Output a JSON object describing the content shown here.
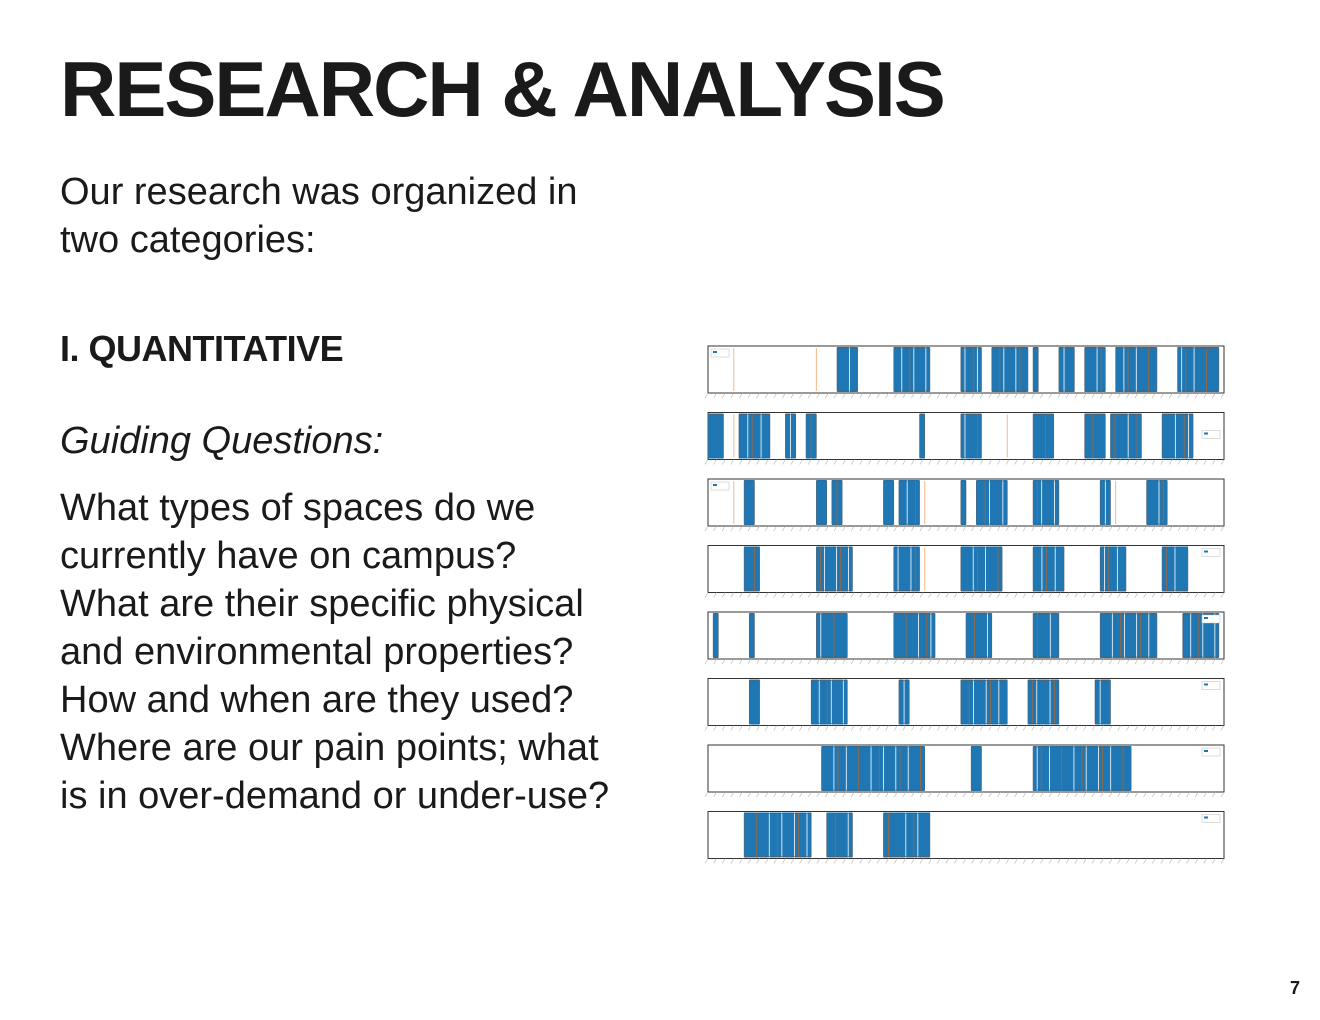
{
  "page": {
    "title": "RESEARCH & ANALYSIS",
    "intro_lines": [
      "Our research was organized in",
      "two categories:"
    ],
    "section_heading": "I. QUANTITATIVE",
    "guiding_label": "Guiding Questions:",
    "question_lines": [
      "What types of spaces do we",
      "currently have on campus?",
      "What are their specific physical",
      "and environmental properties?",
      "How and when are they used?",
      "Where are our pain points; what",
      "is in over-demand or under-use?"
    ],
    "page_number": "7"
  },
  "colors": {
    "text": "#1a1a1a",
    "occupied": "#1f77b4",
    "secondary": "#a0673a",
    "tertiary": "#f4b98a",
    "frame": "#333333"
  },
  "chart_data": {
    "type": "bar",
    "description_note": "",
    "panels": [
      {
        "segments": [
          [
            0.25,
            0.29
          ],
          [
            0.36,
            0.43
          ],
          [
            0.49,
            0.53
          ],
          [
            0.55,
            0.62
          ],
          [
            0.63,
            0.64
          ],
          [
            0.68,
            0.71
          ],
          [
            0.73,
            0.77
          ],
          [
            0.79,
            0.87
          ],
          [
            0.91,
            0.99
          ]
        ]
      },
      {
        "segments": [
          [
            0.0,
            0.03
          ],
          [
            0.06,
            0.12
          ],
          [
            0.15,
            0.17
          ],
          [
            0.19,
            0.21
          ],
          [
            0.41,
            0.42
          ],
          [
            0.49,
            0.53
          ],
          [
            0.63,
            0.67
          ],
          [
            0.73,
            0.77
          ],
          [
            0.78,
            0.84
          ],
          [
            0.88,
            0.94
          ]
        ]
      },
      {
        "segments": [
          [
            0.07,
            0.09
          ],
          [
            0.21,
            0.23
          ],
          [
            0.24,
            0.26
          ],
          [
            0.34,
            0.36
          ],
          [
            0.37,
            0.41
          ],
          [
            0.49,
            0.5
          ],
          [
            0.52,
            0.58
          ],
          [
            0.63,
            0.68
          ],
          [
            0.76,
            0.78
          ],
          [
            0.85,
            0.89
          ]
        ]
      },
      {
        "segments": [
          [
            0.07,
            0.1
          ],
          [
            0.21,
            0.28
          ],
          [
            0.36,
            0.41
          ],
          [
            0.49,
            0.57
          ],
          [
            0.63,
            0.69
          ],
          [
            0.76,
            0.81
          ],
          [
            0.88,
            0.93
          ]
        ]
      },
      {
        "segments": [
          [
            0.01,
            0.02
          ],
          [
            0.08,
            0.09
          ],
          [
            0.21,
            0.27
          ],
          [
            0.36,
            0.44
          ],
          [
            0.5,
            0.55
          ],
          [
            0.63,
            0.68
          ],
          [
            0.76,
            0.87
          ],
          [
            0.92,
            0.99
          ]
        ]
      },
      {
        "segments": [
          [
            0.08,
            0.1
          ],
          [
            0.2,
            0.27
          ],
          [
            0.37,
            0.39
          ],
          [
            0.49,
            0.58
          ],
          [
            0.62,
            0.68
          ],
          [
            0.75,
            0.78
          ]
        ]
      },
      {
        "segments": [
          [
            0.22,
            0.42
          ],
          [
            0.51,
            0.53
          ],
          [
            0.63,
            0.82
          ]
        ]
      },
      {
        "segments": [
          [
            0.07,
            0.2
          ],
          [
            0.23,
            0.28
          ],
          [
            0.34,
            0.36
          ],
          [
            0.36,
            0.43
          ]
        ]
      }
    ]
  }
}
